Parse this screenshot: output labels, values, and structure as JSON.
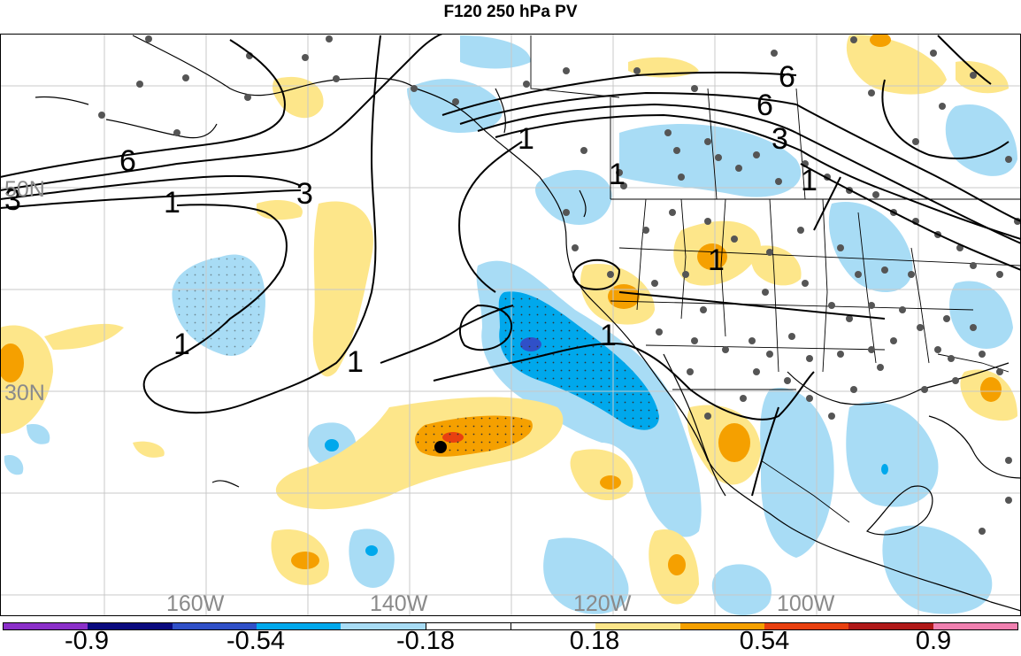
{
  "title": "F120 250 hPa PV",
  "lat_labels": [
    "50N",
    "30N"
  ],
  "lon_labels": [
    "160W",
    "140W",
    "120W",
    "100W"
  ],
  "contour_labels": [
    "6",
    "6",
    "6",
    "3",
    "3",
    "3",
    "1",
    "1",
    "1",
    "1",
    "1",
    "1",
    "1",
    "1"
  ],
  "colorbar": {
    "colors": [
      "#8b2fc9",
      "#0a0a7f",
      "#3050c8",
      "#00a8ec",
      "#a8dcf5",
      "#ffffff",
      "#ffffff",
      "#fde68a",
      "#f5a000",
      "#e84010",
      "#b01818",
      "#f080b0"
    ],
    "labels": [
      "-0.9",
      "-0.54",
      "-0.18",
      "0.18",
      "0.54",
      "0.9"
    ]
  },
  "marker": {
    "type": "black dot"
  }
}
